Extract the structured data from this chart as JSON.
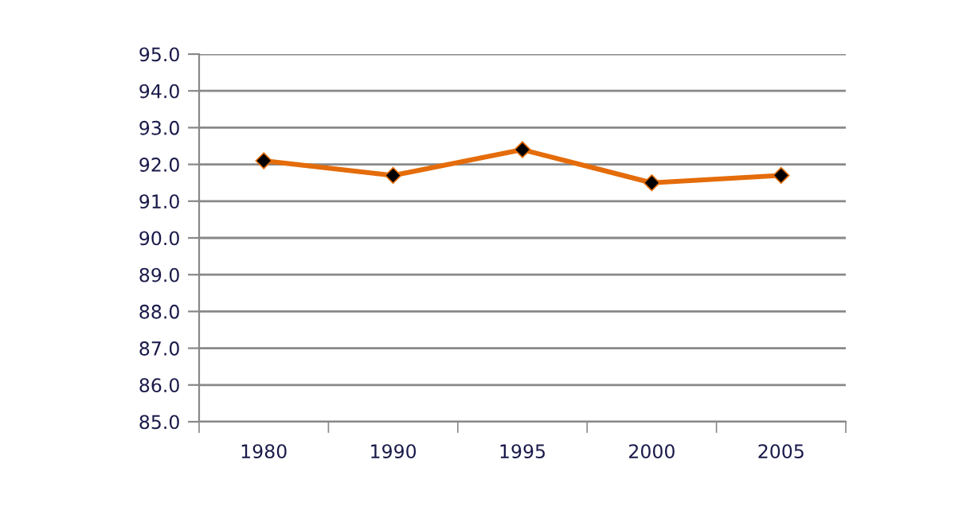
{
  "chart_data": {
    "type": "line",
    "categories": [
      "1980",
      "1990",
      "1995",
      "2000",
      "2005"
    ],
    "series": [
      {
        "color": "#e46c0a",
        "values": [
          92.1,
          91.7,
          92.4,
          91.5,
          91.7
        ]
      }
    ],
    "ylim": [
      85,
      95
    ],
    "yticks": [
      {
        "value": 85,
        "label": "85.0"
      },
      {
        "value": 86,
        "label": "86.0"
      },
      {
        "value": 87,
        "label": "87.0"
      },
      {
        "value": 88,
        "label": "88.0"
      },
      {
        "value": 89,
        "label": "89.0"
      },
      {
        "value": 90,
        "label": "90.0"
      },
      {
        "value": 91,
        "label": "91.0"
      },
      {
        "value": 92,
        "label": "92.0"
      },
      {
        "value": 93,
        "label": "93.0"
      },
      {
        "value": 94,
        "label": "94.0"
      },
      {
        "value": 95,
        "label": "95.0"
      }
    ],
    "grid": "y",
    "marker": "diamond",
    "line_style": "solid"
  }
}
